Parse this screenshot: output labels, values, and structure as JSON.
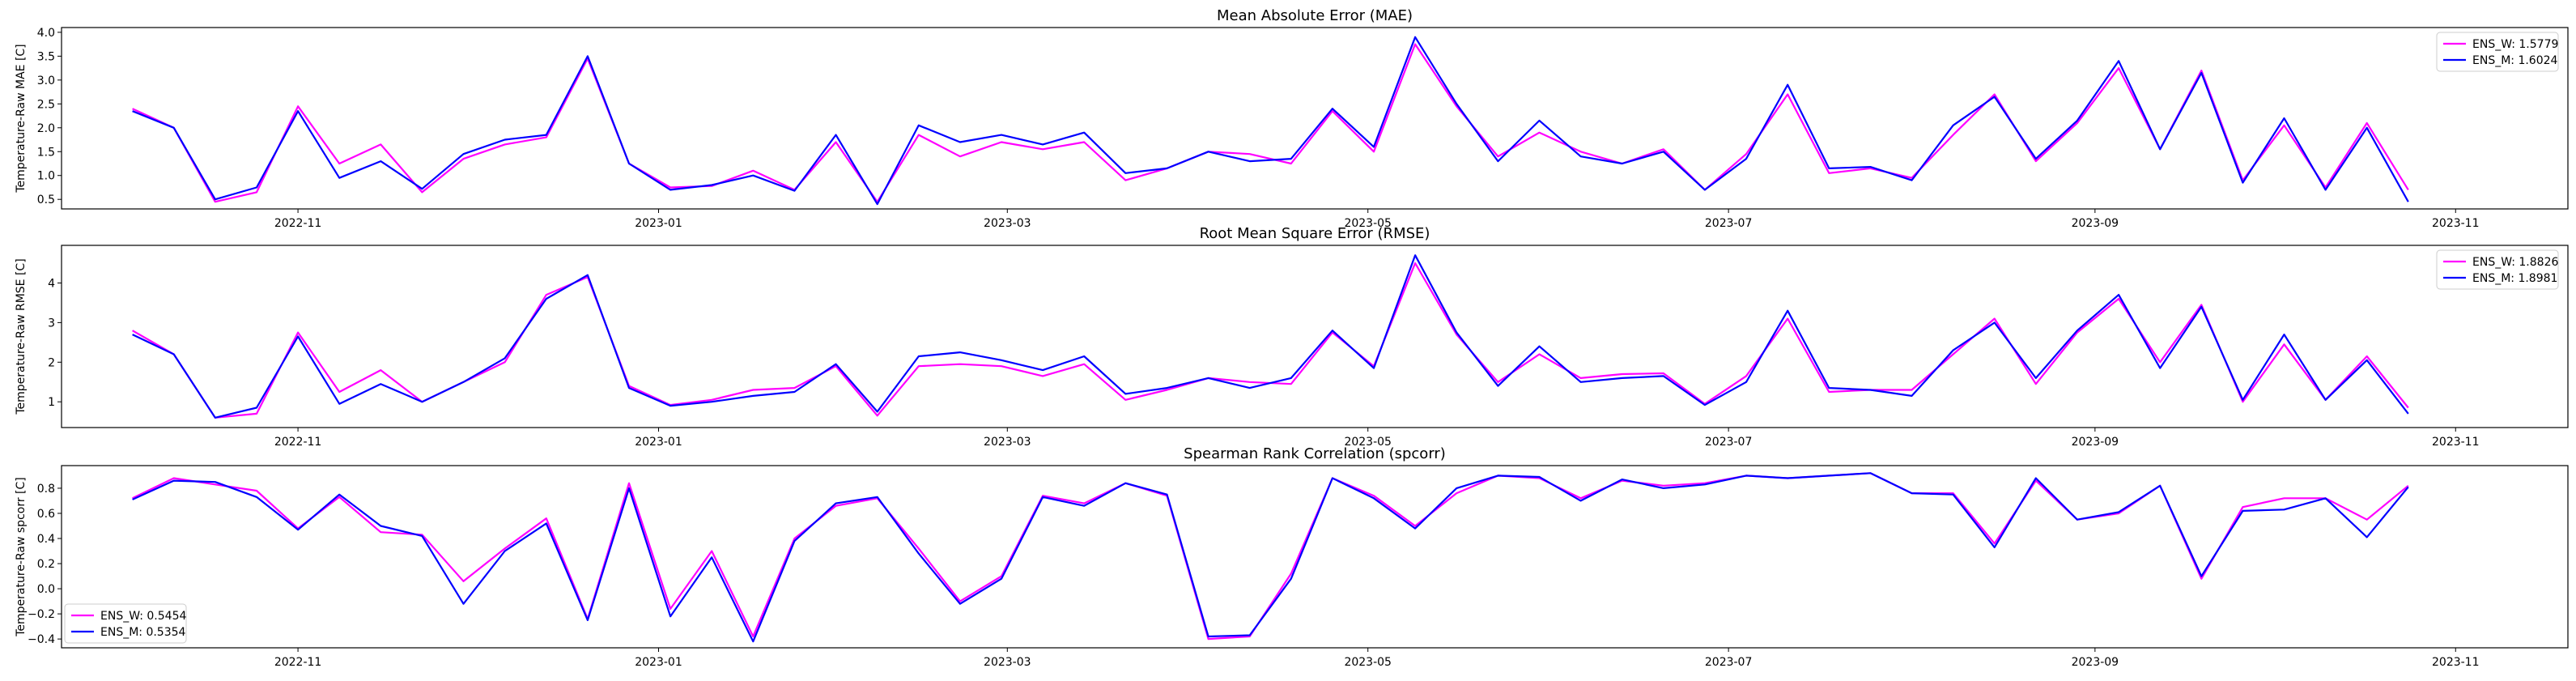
{
  "colors": {
    "ENS_W": "#ff00ff",
    "ENS_M": "#0000ff",
    "axis": "#000000",
    "background": "#ffffff"
  },
  "xaxis": {
    "start": "2022-10-04",
    "ticks": [
      {
        "date": "2022-11-01",
        "label": "2022-11"
      },
      {
        "date": "2023-01-01",
        "label": "2023-01"
      },
      {
        "date": "2023-03-01",
        "label": "2023-03"
      },
      {
        "date": "2023-05-01",
        "label": "2023-05"
      },
      {
        "date": "2023-07-01",
        "label": "2023-07"
      },
      {
        "date": "2023-09-01",
        "label": "2023-09"
      },
      {
        "date": "2023-11-01",
        "label": "2023-11"
      }
    ]
  },
  "chart_data": [
    {
      "type": "line",
      "title": "Mean Absolute Error (MAE)",
      "ylabel": "Temperature-Raw MAE [C]",
      "xlabel": "",
      "ylim": [
        0.3,
        4.1
      ],
      "yticks": [
        "0.5",
        "1.0",
        "1.5",
        "2.0",
        "2.5",
        "3.0",
        "3.5",
        "4.0"
      ],
      "legend_position": "upper right",
      "series": [
        {
          "name": "ENS_W: 1.5779",
          "color": "#ff00ff",
          "values": [
            2.4,
            2.0,
            0.45,
            0.65,
            2.45,
            1.25,
            1.65,
            0.65,
            1.35,
            1.65,
            1.8,
            3.45,
            1.25,
            0.75,
            0.78,
            1.1,
            0.7,
            1.7,
            0.45,
            1.85,
            1.4,
            1.7,
            1.55,
            1.7,
            0.9,
            1.15,
            1.5,
            1.45,
            1.25,
            2.35,
            1.5,
            3.75,
            2.45,
            1.4,
            1.9,
            1.5,
            1.25,
            1.55,
            0.7,
            1.45,
            2.7,
            1.05,
            1.15,
            0.95,
            1.85,
            2.7,
            1.3,
            2.1,
            3.25,
            1.55,
            3.2,
            0.9,
            2.05,
            0.75,
            2.1,
            0.7
          ]
        },
        {
          "name": "ENS_M: 1.6024",
          "color": "#0000ff",
          "values": [
            2.35,
            2.0,
            0.5,
            0.75,
            2.35,
            0.95,
            1.3,
            0.72,
            1.45,
            1.75,
            1.85,
            3.5,
            1.25,
            0.7,
            0.8,
            1.0,
            0.68,
            1.85,
            0.4,
            2.05,
            1.7,
            1.85,
            1.65,
            1.9,
            1.05,
            1.15,
            1.5,
            1.3,
            1.35,
            2.4,
            1.6,
            3.9,
            2.5,
            1.3,
            2.15,
            1.4,
            1.25,
            1.5,
            0.7,
            1.35,
            2.9,
            1.15,
            1.18,
            0.9,
            2.05,
            2.65,
            1.35,
            2.15,
            3.4,
            1.55,
            3.15,
            0.85,
            2.2,
            0.7,
            2.0,
            0.45
          ]
        }
      ]
    },
    {
      "type": "line",
      "title": "Root Mean Square Error (RMSE)",
      "ylabel": "Temperature-Raw RMSE [C]",
      "xlabel": "",
      "ylim": [
        0.35,
        4.95
      ],
      "yticks": [
        "1",
        "2",
        "3",
        "4"
      ],
      "legend_position": "upper right",
      "series": [
        {
          "name": "ENS_W: 1.8826",
          "color": "#ff00ff",
          "values": [
            2.8,
            2.2,
            0.6,
            0.7,
            2.75,
            1.25,
            1.8,
            1.0,
            1.5,
            2.0,
            3.7,
            4.15,
            1.4,
            0.92,
            1.05,
            1.3,
            1.35,
            1.9,
            0.65,
            1.9,
            1.95,
            1.9,
            1.65,
            1.95,
            1.05,
            1.3,
            1.6,
            1.5,
            1.45,
            2.75,
            1.9,
            4.5,
            2.7,
            1.5,
            2.2,
            1.6,
            1.7,
            1.72,
            0.95,
            1.65,
            3.1,
            1.25,
            1.3,
            1.3,
            2.2,
            3.1,
            1.45,
            2.75,
            3.6,
            2.0,
            3.45,
            1.0,
            2.45,
            1.05,
            2.15,
            0.85
          ]
        },
        {
          "name": "ENS_M: 1.8981",
          "color": "#0000ff",
          "values": [
            2.7,
            2.2,
            0.6,
            0.85,
            2.65,
            0.95,
            1.45,
            1.0,
            1.5,
            2.1,
            3.6,
            4.2,
            1.35,
            0.9,
            1.0,
            1.15,
            1.25,
            1.95,
            0.75,
            2.15,
            2.25,
            2.05,
            1.8,
            2.15,
            1.2,
            1.35,
            1.6,
            1.35,
            1.6,
            2.8,
            1.85,
            4.7,
            2.75,
            1.4,
            2.4,
            1.5,
            1.6,
            1.65,
            0.92,
            1.5,
            3.3,
            1.35,
            1.3,
            1.15,
            2.3,
            3.0,
            1.6,
            2.8,
            3.7,
            1.85,
            3.4,
            1.05,
            2.7,
            1.05,
            2.05,
            0.7
          ]
        }
      ]
    },
    {
      "type": "line",
      "title": "Spearman Rank Correlation (spcorr)",
      "ylabel": "Temperature-Raw spcorr [C]",
      "xlabel": "",
      "ylim": [
        -0.47,
        0.98
      ],
      "yticks": [
        "−0.4",
        "−0.2",
        "0.0",
        "0.2",
        "0.4",
        "0.6",
        "0.8"
      ],
      "legend_position": "lower left",
      "series": [
        {
          "name": "ENS_W: 0.5454",
          "color": "#ff00ff",
          "values": [
            0.72,
            0.88,
            0.83,
            0.78,
            0.48,
            0.73,
            0.45,
            0.43,
            0.06,
            0.32,
            0.56,
            -0.24,
            0.84,
            -0.16,
            0.3,
            -0.38,
            0.4,
            0.66,
            0.72,
            0.32,
            -0.1,
            0.1,
            0.74,
            0.68,
            0.84,
            0.74,
            -0.4,
            -0.38,
            0.12,
            0.88,
            0.74,
            0.5,
            0.76,
            0.9,
            0.88,
            0.72,
            0.86,
            0.82,
            0.84,
            0.9,
            0.88,
            0.9,
            0.92,
            0.76,
            0.76,
            0.36,
            0.86,
            0.55,
            0.6,
            0.82,
            0.08,
            0.65,
            0.72,
            0.72,
            0.55,
            0.82
          ]
        },
        {
          "name": "ENS_M: 0.5354",
          "color": "#0000ff",
          "values": [
            0.71,
            0.86,
            0.85,
            0.73,
            0.47,
            0.75,
            0.5,
            0.42,
            -0.12,
            0.3,
            0.52,
            -0.25,
            0.8,
            -0.22,
            0.25,
            -0.42,
            0.38,
            0.68,
            0.73,
            0.28,
            -0.12,
            0.08,
            0.73,
            0.66,
            0.84,
            0.75,
            -0.38,
            -0.37,
            0.08,
            0.88,
            0.72,
            0.48,
            0.8,
            0.9,
            0.89,
            0.7,
            0.87,
            0.8,
            0.83,
            0.9,
            0.88,
            0.9,
            0.92,
            0.76,
            0.75,
            0.33,
            0.88,
            0.55,
            0.61,
            0.82,
            0.1,
            0.62,
            0.63,
            0.72,
            0.41,
            0.81
          ]
        }
      ]
    }
  ]
}
